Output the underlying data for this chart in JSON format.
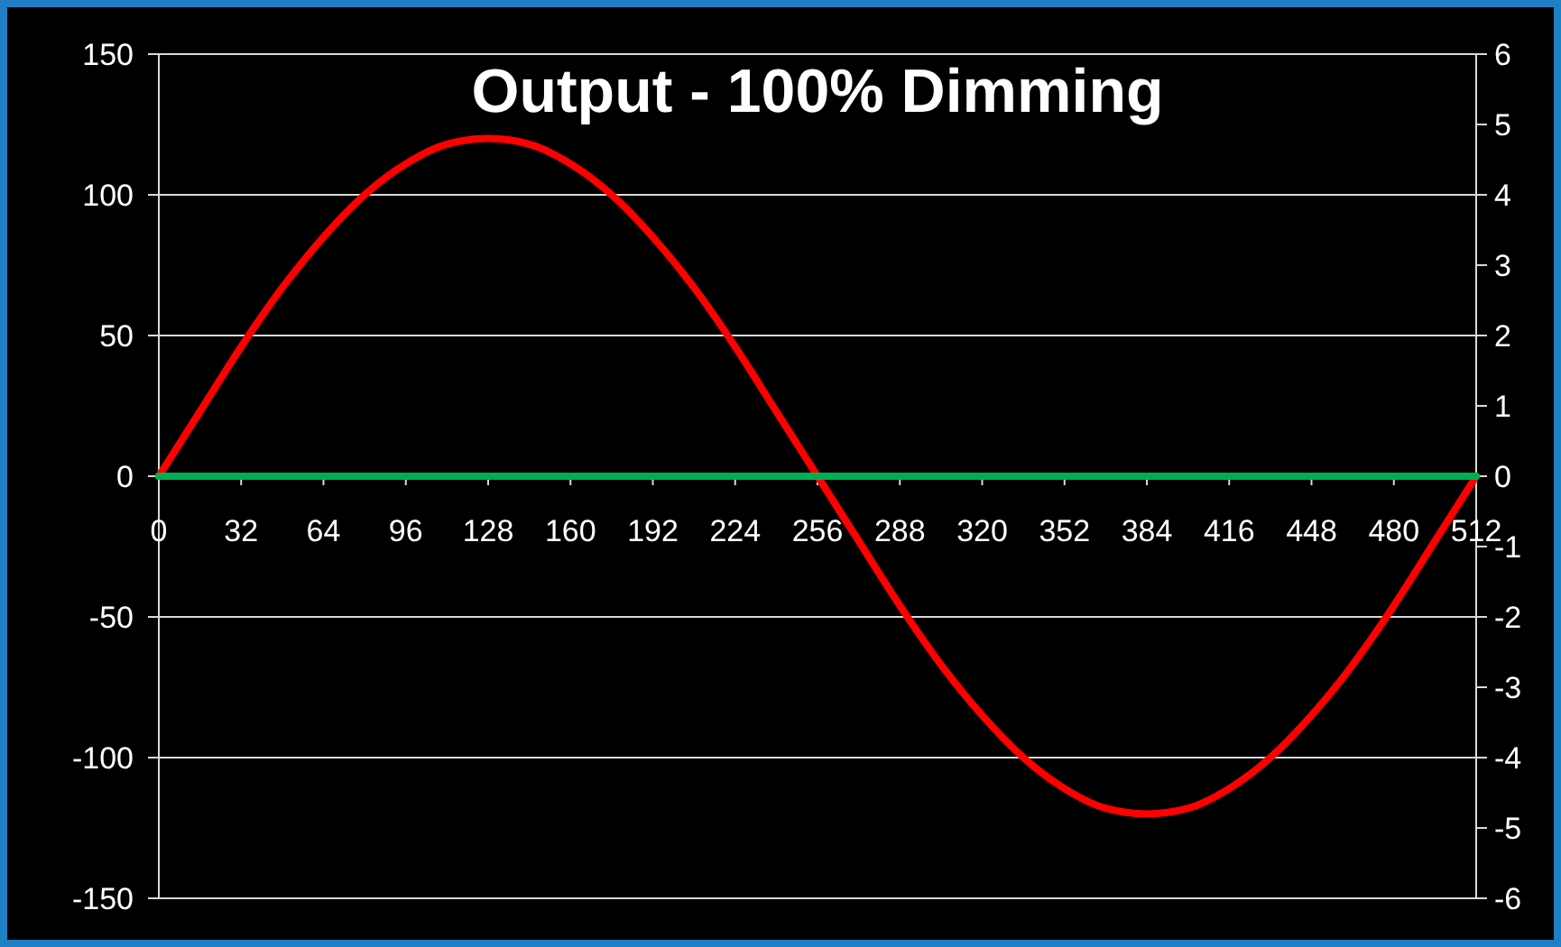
{
  "chart_data": {
    "type": "line",
    "title": "Output - 100% Dimming",
    "x": [
      0,
      16,
      32,
      48,
      64,
      80,
      96,
      112,
      128,
      144,
      160,
      176,
      192,
      208,
      224,
      240,
      256,
      272,
      288,
      304,
      320,
      336,
      352,
      368,
      384,
      400,
      416,
      432,
      448,
      464,
      480,
      496,
      512
    ],
    "series": [
      {
        "color": "#ff0000",
        "values": [
          0,
          23,
          46,
          67,
          85,
          100,
          111,
          118,
          120,
          118,
          111,
          100,
          85,
          67,
          46,
          23,
          0,
          -23,
          -46,
          -67,
          -85,
          -100,
          -111,
          -118,
          -120,
          -118,
          -111,
          -100,
          -85,
          -67,
          -46,
          -23,
          0
        ]
      },
      {
        "color": "#00b050",
        "x": [
          0,
          512
        ],
        "values": [
          0,
          0
        ]
      }
    ],
    "xlim": [
      0,
      512
    ],
    "xticks": [
      0,
      32,
      64,
      96,
      128,
      160,
      192,
      224,
      256,
      288,
      320,
      352,
      384,
      416,
      448,
      480,
      512
    ],
    "ylim": [
      -150,
      150
    ],
    "yticks": [
      -150,
      -100,
      -50,
      0,
      50,
      100,
      150
    ],
    "y2lim": [
      -6,
      6
    ],
    "y2ticks": [
      -6,
      -5,
      -4,
      -3,
      -2,
      -1,
      0,
      1,
      2,
      3,
      4,
      5,
      6
    ],
    "grid": "y",
    "marker": "none",
    "line_style": "solid"
  }
}
